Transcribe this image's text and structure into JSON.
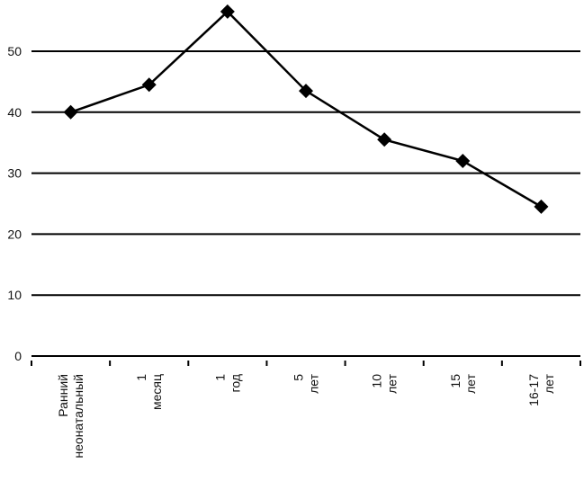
{
  "chart_data": {
    "type": "line",
    "categories": [
      "Ранний неонатальный",
      "1 месяц",
      "1 год",
      "5 лет",
      "10 лет",
      "15 лет",
      "16-17 лет"
    ],
    "values": [
      40,
      44.5,
      56.5,
      43.5,
      35.5,
      32,
      24.5
    ],
    "color": "#000000",
    "ylim": [
      0,
      58
    ],
    "yticks": [
      0,
      10,
      20,
      30,
      40,
      50
    ],
    "grid": true
  }
}
